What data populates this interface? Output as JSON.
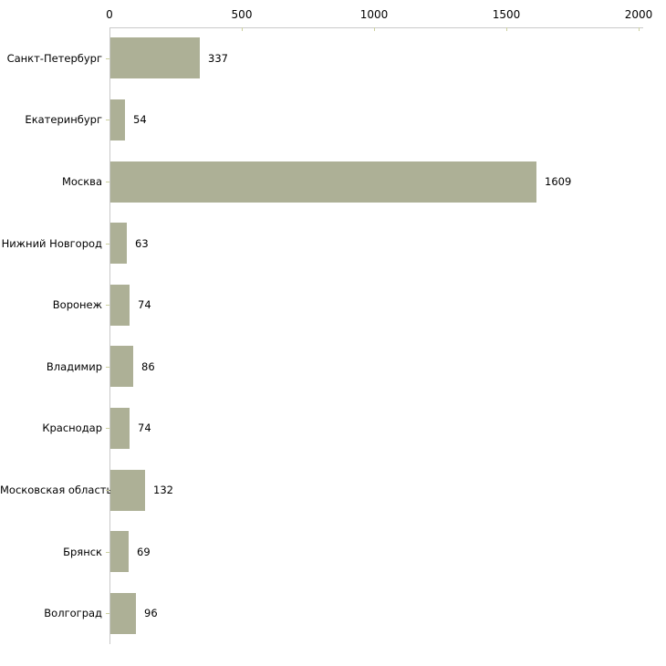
{
  "chart_data": {
    "type": "bar",
    "orientation": "horizontal",
    "title": "",
    "xlabel": "",
    "ylabel": "",
    "categories": [
      "Санкт-Петербург",
      "Екатеринбург",
      "Москва",
      "Нижний Новгород",
      "Воронеж",
      "Владимир",
      "Краснодар",
      "Московская область",
      "Брянск",
      "Волгоград"
    ],
    "values": [
      337,
      54,
      1609,
      63,
      74,
      86,
      74,
      132,
      69,
      96
    ],
    "value_labels": [
      "337",
      "54",
      "1609",
      "63",
      "74",
      "86",
      "74",
      "132",
      "69",
      "96"
    ],
    "xlim": [
      0,
      2000
    ],
    "x_ticks": [
      0,
      500,
      1000,
      1500,
      2000
    ],
    "x_tick_labels": [
      "0",
      "500",
      "1000",
      "1500",
      "2000"
    ],
    "grid": false,
    "legend": null,
    "axis_position": "top",
    "colors": {
      "bar_fill": "#adb096",
      "axis_line": "#c9c9c9",
      "tick_mark": "#ccd09e",
      "text": "#000000",
      "background": "#ffffff"
    }
  }
}
